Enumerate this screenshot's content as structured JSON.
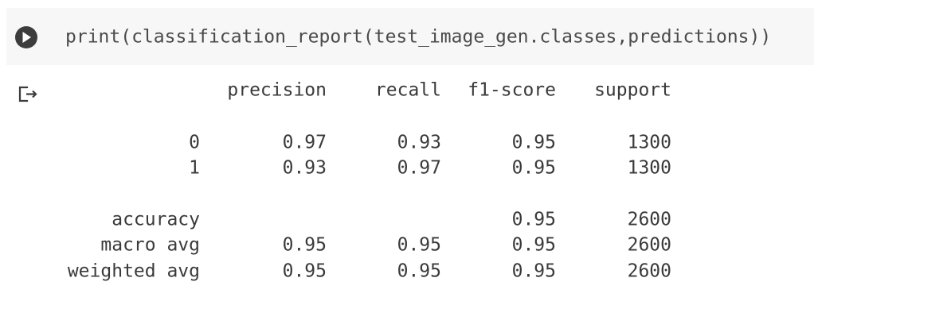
{
  "cell": {
    "code": "print(classification_report(test_image_gen.classes,predictions))"
  },
  "output": {
    "header": [
      "precision",
      "recall",
      "f1-score",
      "support"
    ],
    "rows": [
      {
        "label": "0",
        "precision": "0.97",
        "recall": "0.93",
        "f1": "0.95",
        "support": "1300"
      },
      {
        "label": "1",
        "precision": "0.93",
        "recall": "0.97",
        "f1": "0.95",
        "support": "1300"
      },
      {
        "label": "accuracy",
        "f1": "0.95",
        "support": "2600"
      },
      {
        "label": "macro avg",
        "precision": "0.95",
        "recall": "0.95",
        "f1": "0.95",
        "support": "2600"
      },
      {
        "label": "weighted avg",
        "precision": "0.95",
        "recall": "0.95",
        "f1": "0.95",
        "support": "2600"
      }
    ]
  }
}
